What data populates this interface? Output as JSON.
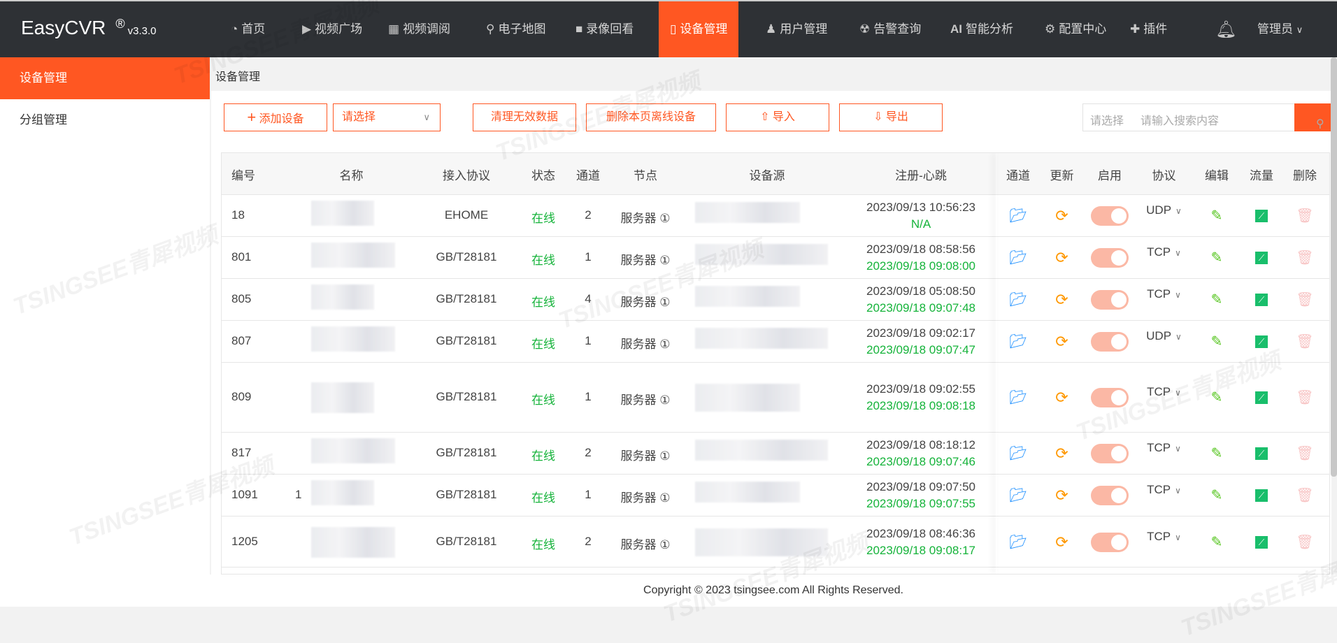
{
  "app": {
    "name": "EasyCVR",
    "reg": "®",
    "version": "v3.3.0"
  },
  "nav": [
    {
      "label": "首页",
      "icon": "dashboard-icon",
      "glyph": "◔"
    },
    {
      "label": "视频广场",
      "icon": "play-icon",
      "glyph": "▶"
    },
    {
      "label": "视频调阅",
      "icon": "layout-icon",
      "glyph": "▦"
    },
    {
      "label": "电子地图",
      "icon": "map-pin-icon",
      "glyph": "⚲"
    },
    {
      "label": "录像回看",
      "icon": "video-camera-icon",
      "glyph": "■"
    },
    {
      "label": "设备管理",
      "icon": "device-icon",
      "glyph": "▯",
      "active": true
    },
    {
      "label": "用户管理",
      "icon": "user-icon",
      "glyph": "♟"
    },
    {
      "label": "告警查询",
      "icon": "alarm-icon",
      "glyph": "☢"
    },
    {
      "label": "智能分析",
      "icon": "ai-icon",
      "glyph": "AI"
    },
    {
      "label": "配置中心",
      "icon": "gear-icon",
      "glyph": "⚙"
    },
    {
      "label": "插件",
      "icon": "puzzle-icon",
      "glyph": "✚"
    }
  ],
  "user": {
    "name": "管理员",
    "bell": "bell-icon"
  },
  "sidebar": [
    {
      "label": "设备管理",
      "active": true
    },
    {
      "label": "分组管理"
    }
  ],
  "breadcrumb": "设备管理",
  "toolbar": {
    "add": "添加设备",
    "select": "请选择",
    "clean": "清理无效数据",
    "delete_offline": "删除本页离线设备",
    "import": "导入",
    "export": "导出"
  },
  "search": {
    "select": "请选择",
    "placeholder": "请输入搜索内容"
  },
  "columns": [
    "编号",
    "名称",
    "接入协议",
    "状态",
    "通道",
    "节点",
    "设备源",
    "注册-心跳",
    "通道",
    "更新",
    "启用",
    "协议",
    "编辑",
    "流量",
    "删除"
  ],
  "rows": [
    {
      "id": "18",
      "protocol": "EHOME",
      "status": "在线",
      "channels": "2",
      "node": "服务器 ①",
      "register": "2023/09/13 10:56:23",
      "heartbeat": "N/A",
      "transport": "UDP",
      "enabled": true
    },
    {
      "id": "801",
      "protocol": "GB/T28181",
      "status": "在线",
      "channels": "1",
      "node": "服务器 ①",
      "register": "2023/09/18 08:58:56",
      "heartbeat": "2023/09/18 09:08:00",
      "transport": "TCP",
      "enabled": true
    },
    {
      "id": "805",
      "protocol": "GB/T28181",
      "status": "在线",
      "channels": "4",
      "node": "服务器 ①",
      "register": "2023/09/18 05:08:50",
      "heartbeat": "2023/09/18 09:07:48",
      "transport": "TCP",
      "enabled": true
    },
    {
      "id": "807",
      "protocol": "GB/T28181",
      "status": "在线",
      "channels": "1",
      "node": "服务器 ①",
      "register": "2023/09/18 09:02:17",
      "heartbeat": "2023/09/18 09:07:47",
      "transport": "UDP",
      "enabled": true
    },
    {
      "id": "809",
      "protocol": "GB/T28181",
      "status": "在线",
      "channels": "1",
      "node": "服务器 ①",
      "register": "2023/09/18 09:02:55",
      "heartbeat": "2023/09/18 09:08:18",
      "transport": "TCP",
      "enabled": true
    },
    {
      "id": "817",
      "protocol": "GB/T28181",
      "status": "在线",
      "channels": "2",
      "node": "服务器 ①",
      "register": "2023/09/18 08:18:12",
      "heartbeat": "2023/09/18 09:07:46",
      "transport": "TCP",
      "enabled": true
    },
    {
      "id": "1091",
      "name_prefix": "1",
      "protocol": "GB/T28181",
      "status": "在线",
      "channels": "1",
      "node": "服务器 ①",
      "register": "2023/09/18 09:07:50",
      "heartbeat": "2023/09/18 09:07:55",
      "transport": "TCP",
      "enabled": true
    },
    {
      "id": "1205",
      "protocol": "GB/T28181",
      "status": "在线",
      "channels": "2",
      "node": "服务器 ①",
      "register": "2023/09/18 08:46:36",
      "heartbeat": "2023/09/18 09:08:17",
      "transport": "TCP",
      "enabled": true
    }
  ],
  "footer": "Copyright © 2023 tsingsee.com All Rights Reserved.",
  "watermark": "TSINGSEE青犀视频",
  "colors": {
    "accent": "#ff5722",
    "nav_bg": "#2e3135",
    "online": "#15b33a",
    "folder": "#1e90ff",
    "refresh": "#ff9800",
    "edit": "#52c41a",
    "traffic": "#19be6b",
    "delete": "#f8c6c6"
  }
}
